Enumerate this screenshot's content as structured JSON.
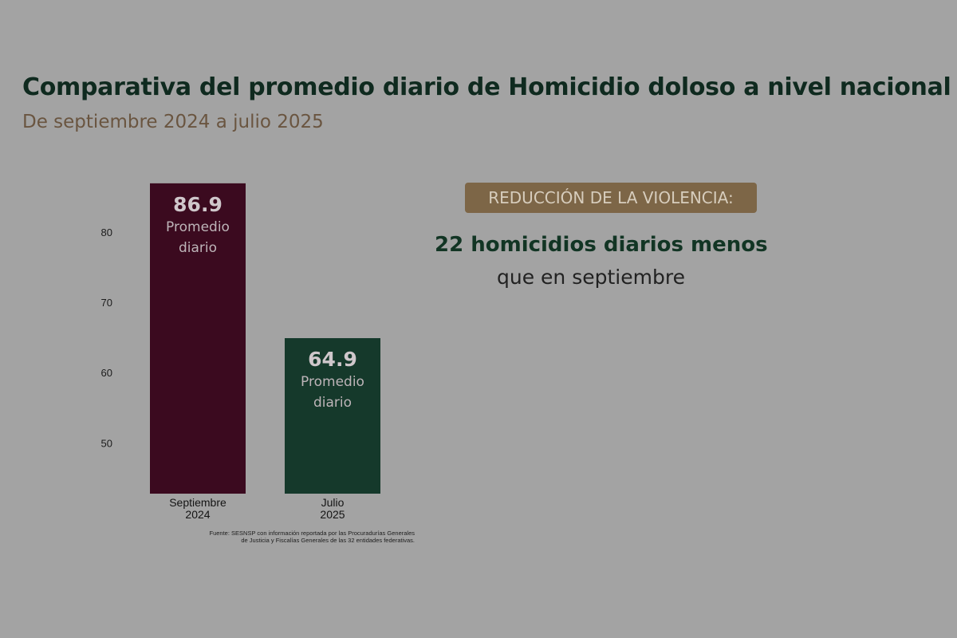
{
  "header": {
    "title": "Comparativa del promedio diario de Homicidio doloso a nivel nacional",
    "subtitle": "De septiembre 2024 a julio 2025"
  },
  "chart_data": {
    "type": "bar",
    "categories": [
      [
        "Septiembre",
        "2024"
      ],
      [
        "Julio",
        "2025"
      ]
    ],
    "values": [
      86.9,
      64.9
    ],
    "value_labels": [
      "86.9",
      "64.9"
    ],
    "bar_caption": [
      "Promedio",
      "diario"
    ],
    "yticks": [
      50,
      60,
      70,
      80
    ],
    "ylim": [
      42.8,
      87.0
    ],
    "colors": [
      "#3b0a1f",
      "#15392b"
    ],
    "grid": false,
    "source_note": [
      "Fuente: SESNSP con información reportada por las Procuradurías Generales",
      "de Justicia y Fiscalías Generales de las 32 entidades federativas."
    ]
  },
  "summary": {
    "badge": "REDUCCIÓN DE LA VIOLENCIA:",
    "headline": "22 homicidios diarios menos",
    "detail": "que en septiembre"
  },
  "colors": {
    "background": "#a3a3a3",
    "title": "#0f2a1f",
    "subtitle": "#6a5540",
    "badge_bg": "#7d6647",
    "badge_text": "#d7cdbd",
    "headline": "#123524"
  }
}
